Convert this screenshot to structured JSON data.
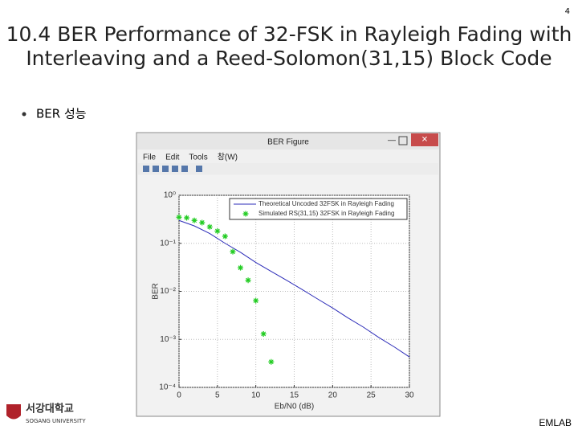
{
  "slide": {
    "page_number": "4",
    "title_lines": [
      "10.4 BER Performance of 32-FSK in Rayleigh Fading with",
      "Interleaving and a Reed-Solomon(31,15) Block Code"
    ],
    "bullet": "BER 성능",
    "footer": "EMLAB",
    "logo_name": "서강대학교",
    "logo_sub": "SOGANG UNIVERSITY"
  },
  "window": {
    "title": "BER Figure",
    "menu": [
      "File",
      "Edit",
      "Tools",
      "창(W)"
    ]
  },
  "chart_data": {
    "type": "line",
    "yscale": "log",
    "grid": true,
    "legend": "upper right",
    "xlabel": "Eb/N0 (dB)",
    "ylabel": "BER",
    "xlim": [
      0,
      30
    ],
    "xticks": [
      0,
      5,
      10,
      15,
      20,
      25,
      30
    ],
    "ylim": [
      0.0001,
      1
    ],
    "yticks": [
      {
        "value": 0.0001,
        "label": "10⁻⁴"
      },
      {
        "value": 0.001,
        "label": "10⁻³"
      },
      {
        "value": 0.01,
        "label": "10⁻²"
      },
      {
        "value": 0.1,
        "label": "10⁻¹"
      },
      {
        "value": 1,
        "label": "10⁰"
      }
    ],
    "series": [
      {
        "name": "Theoretical Uncoded 32FSK in Rayleigh Fading",
        "color": "#2b2bb8",
        "marker": "none",
        "x": [
          0,
          2,
          4,
          6,
          8,
          10,
          12,
          14,
          16,
          18,
          20,
          22,
          24,
          26,
          28,
          30
        ],
        "values": [
          0.3,
          0.23,
          0.16,
          0.1,
          0.065,
          0.04,
          0.026,
          0.017,
          0.011,
          0.007,
          0.0045,
          0.0028,
          0.0018,
          0.0011,
          0.0007,
          0.00043
        ]
      },
      {
        "name": "Simulated RS(31,15) 32FSK in Rayleigh Fading",
        "color": "#22cc22",
        "marker": "star",
        "x": [
          0,
          1,
          2,
          3,
          4,
          5,
          6,
          7,
          8,
          9,
          10,
          11,
          12
        ],
        "values": [
          0.35,
          0.34,
          0.3,
          0.27,
          0.22,
          0.18,
          0.14,
          0.067,
          0.031,
          0.017,
          0.0064,
          0.0013,
          0.00034
        ]
      }
    ]
  }
}
